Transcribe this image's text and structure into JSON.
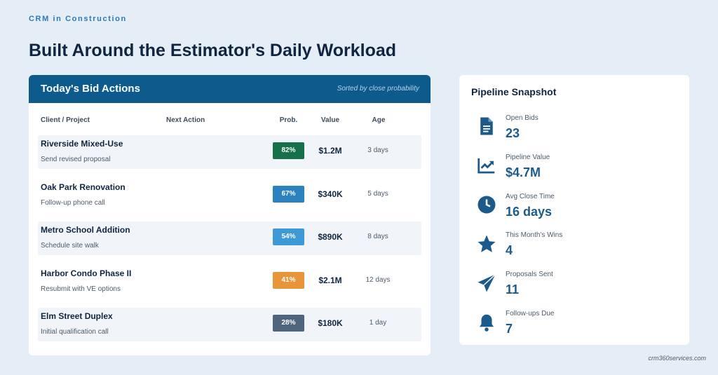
{
  "header": {
    "eyebrow": "CRM in Construction",
    "title": "Built Around the Estimator's Daily Workload"
  },
  "table": {
    "title": "Today's Bid Actions",
    "note": "Sorted by close probability",
    "columns": [
      "Client / Project",
      "Next Action",
      "Prob.",
      "Value",
      "Age"
    ],
    "rows": [
      {
        "project": "Riverside Mixed-Use",
        "action": "Send revised proposal",
        "prob": "82%",
        "value": "$1.2M",
        "age": "3 days",
        "color": "#16714a"
      },
      {
        "project": "Oak Park Renovation",
        "action": "Follow-up phone call",
        "prob": "67%",
        "value": "$340K",
        "age": "5 days",
        "color": "#2a82bf"
      },
      {
        "project": "Metro School Addition",
        "action": "Schedule site walk",
        "prob": "54%",
        "value": "$890K",
        "age": "8 days",
        "color": "#3e9ad6"
      },
      {
        "project": "Harbor Condo Phase II",
        "action": "Resubmit with VE options",
        "prob": "41%",
        "value": "$2.1M",
        "age": "12 days",
        "color": "#e8953a"
      },
      {
        "project": "Elm Street Duplex",
        "action": "Initial qualification call",
        "prob": "28%",
        "value": "$180K",
        "age": "1 day",
        "color": "#4e657d"
      }
    ]
  },
  "snapshot": {
    "title": "Pipeline Snapshot",
    "items": [
      {
        "label": "Open Bids",
        "value": "23"
      },
      {
        "label": "Pipeline Value",
        "value": "$4.7M"
      },
      {
        "label": "Avg Close Time",
        "value": "16 days"
      },
      {
        "label": "This Month's Wins",
        "value": "4"
      },
      {
        "label": "Proposals Sent",
        "value": "11"
      },
      {
        "label": "Follow-ups Due",
        "value": "7"
      }
    ]
  },
  "footer": "crm360services.com"
}
